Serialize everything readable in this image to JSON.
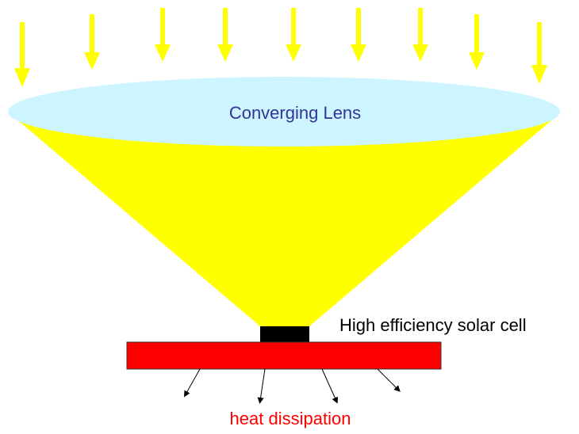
{
  "lens": {
    "label": "Converging Lens"
  },
  "cell": {
    "label": "High efficiency solar cell"
  },
  "heat": {
    "label": "heat dissipation"
  }
}
